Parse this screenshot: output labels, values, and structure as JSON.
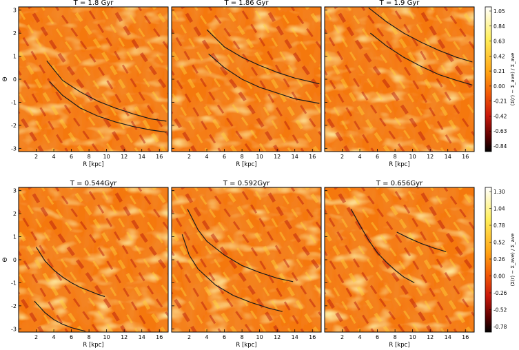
{
  "figure": {
    "rows": [
      {
        "colorbar_ticks": [
          "1.05",
          "0.84",
          "0.63",
          "0.42",
          "0.21",
          "0.00",
          "-0.21",
          "-0.42",
          "-0.63",
          "-0.84"
        ],
        "colorbar_label": "(Σ(r) − Σ_ave) / Σ_ave"
      },
      {
        "colorbar_ticks": [
          "1.30",
          "1.04",
          "0.78",
          "0.52",
          "0.26",
          "0.00",
          "-0.26",
          "-0.52",
          "-0.78"
        ],
        "colorbar_label": "(Σ(r) − Σ_ave) / Σ_ave"
      }
    ]
  },
  "chart_data": [
    {
      "type": "heatmap",
      "row": 0,
      "col": 0,
      "title": "T = 1.8 Gyr",
      "xlabel": "R [kpc]",
      "ylabel": "Θ",
      "xlim": [
        0,
        17
      ],
      "ylim": [
        -3.14,
        3.14
      ],
      "xticks": [
        2,
        4,
        6,
        8,
        10,
        12,
        14,
        16
      ],
      "yticks": [
        -3,
        -2,
        -1,
        0,
        1,
        2,
        3
      ],
      "colorbar_range": [
        -1.0,
        1.05
      ],
      "curves": [
        {
          "x": [
            3.2,
            5,
            7,
            9,
            11,
            13,
            15,
            16.8
          ],
          "y": [
            0.8,
            -0.05,
            -0.55,
            -0.95,
            -1.25,
            -1.5,
            -1.72,
            -1.82
          ]
        },
        {
          "x": [
            3.5,
            5,
            7,
            9,
            11,
            13,
            15,
            16.8
          ],
          "y": [
            -0.1,
            -0.7,
            -1.25,
            -1.6,
            -1.85,
            -2.05,
            -2.2,
            -2.3
          ]
        }
      ]
    },
    {
      "type": "heatmap",
      "row": 0,
      "col": 1,
      "title": "T = 1.86 Gyr",
      "xlabel": "R [kpc]",
      "ylabel": "",
      "xlim": [
        0,
        17
      ],
      "ylim": [
        -3.14,
        3.14
      ],
      "xticks": [
        2,
        4,
        6,
        8,
        10,
        12,
        14,
        16
      ],
      "yticks": [
        -3,
        -2,
        -1,
        0,
        1,
        2,
        3
      ],
      "colorbar_range": [
        -1.0,
        1.05
      ],
      "curves": [
        {
          "x": [
            4.0,
            6,
            8,
            10,
            12,
            14,
            16.8
          ],
          "y": [
            2.15,
            1.4,
            0.95,
            0.6,
            0.3,
            0.05,
            -0.2
          ]
        },
        {
          "x": [
            4.2,
            6,
            8,
            10,
            12,
            14,
            16.8
          ],
          "y": [
            1.1,
            0.5,
            0.0,
            -0.35,
            -0.6,
            -0.85,
            -1.05
          ]
        }
      ]
    },
    {
      "type": "heatmap",
      "row": 0,
      "col": 2,
      "title": "T = 1.9 Gyr",
      "xlabel": "R [kpc]",
      "ylabel": "",
      "xlim": [
        0,
        17
      ],
      "ylim": [
        -3.14,
        3.14
      ],
      "xticks": [
        2,
        4,
        6,
        8,
        10,
        12,
        14,
        16
      ],
      "yticks": [
        -3,
        -2,
        -1,
        0,
        1,
        2,
        3
      ],
      "colorbar_range": [
        -1.0,
        1.05
      ],
      "curves": [
        {
          "x": [
            5.0,
            7,
            9,
            11,
            13,
            15,
            16.8
          ],
          "y": [
            3.1,
            2.5,
            2.0,
            1.6,
            1.25,
            0.95,
            0.75
          ]
        },
        {
          "x": [
            5.2,
            7,
            9,
            11,
            13,
            15,
            16.8
          ],
          "y": [
            2.0,
            1.45,
            0.95,
            0.55,
            0.2,
            -0.05,
            -0.25
          ]
        }
      ]
    },
    {
      "type": "heatmap",
      "row": 1,
      "col": 0,
      "title": "T = 0.544Gyr",
      "xlabel": "R [kpc]",
      "ylabel": "Θ",
      "xlim": [
        0,
        17
      ],
      "ylim": [
        -3.14,
        3.14
      ],
      "xticks": [
        2,
        4,
        6,
        8,
        10,
        12,
        14,
        16
      ],
      "yticks": [
        -3,
        -2,
        -1,
        0,
        1,
        2,
        3
      ],
      "colorbar_range": [
        -1.0,
        1.35
      ],
      "curves": [
        {
          "x": [
            2.0,
            3,
            4,
            5,
            6,
            7,
            8,
            9,
            9.8
          ],
          "y": [
            0.55,
            -0.05,
            -0.45,
            -0.75,
            -1.0,
            -1.2,
            -1.35,
            -1.5,
            -1.6
          ]
        },
        {
          "x": [
            1.8,
            3,
            4,
            5,
            6,
            7,
            7.6
          ],
          "y": [
            -1.8,
            -2.3,
            -2.6,
            -2.8,
            -2.95,
            -3.05,
            -3.1
          ]
        }
      ]
    },
    {
      "type": "heatmap",
      "row": 1,
      "col": 1,
      "title": "T = 0.592Gyr",
      "xlabel": "R [kpc]",
      "ylabel": "",
      "xlim": [
        0,
        17
      ],
      "ylim": [
        -3.14,
        3.14
      ],
      "xticks": [
        2,
        4,
        6,
        8,
        10,
        12,
        14,
        16
      ],
      "yticks": [
        -3,
        -2,
        -1,
        0,
        1,
        2,
        3
      ],
      "colorbar_range": [
        -1.0,
        1.35
      ],
      "curves": [
        {
          "x": [
            1.8,
            3,
            4,
            6,
            8,
            10,
            12,
            13.8
          ],
          "y": [
            2.2,
            1.3,
            0.8,
            0.2,
            -0.25,
            -0.55,
            -0.8,
            -0.95
          ]
        },
        {
          "x": [
            1.2,
            2,
            3,
            5,
            7,
            9,
            11,
            12.6
          ],
          "y": [
            1.1,
            0.2,
            -0.4,
            -1.1,
            -1.55,
            -1.85,
            -2.1,
            -2.25
          ]
        }
      ]
    },
    {
      "type": "heatmap",
      "row": 1,
      "col": 2,
      "title": "T = 0.656Gyr",
      "xlabel": "R [kpc]",
      "ylabel": "",
      "xlim": [
        0,
        17
      ],
      "ylim": [
        -3.14,
        3.14
      ],
      "xticks": [
        2,
        4,
        6,
        8,
        10,
        12,
        14,
        16
      ],
      "yticks": [
        -3,
        -2,
        -1,
        0,
        1,
        2,
        3
      ],
      "colorbar_range": [
        -1.0,
        1.35
      ],
      "curves": [
        {
          "x": [
            3.0,
            4,
            5,
            6,
            7,
            8,
            9,
            10.2
          ],
          "y": [
            2.2,
            1.5,
            0.85,
            0.3,
            -0.1,
            -0.45,
            -0.75,
            -1.0
          ]
        },
        {
          "x": [
            8.2,
            9.5,
            11,
            12.5,
            13.8
          ],
          "y": [
            1.2,
            0.95,
            0.7,
            0.5,
            0.35
          ]
        }
      ]
    }
  ]
}
